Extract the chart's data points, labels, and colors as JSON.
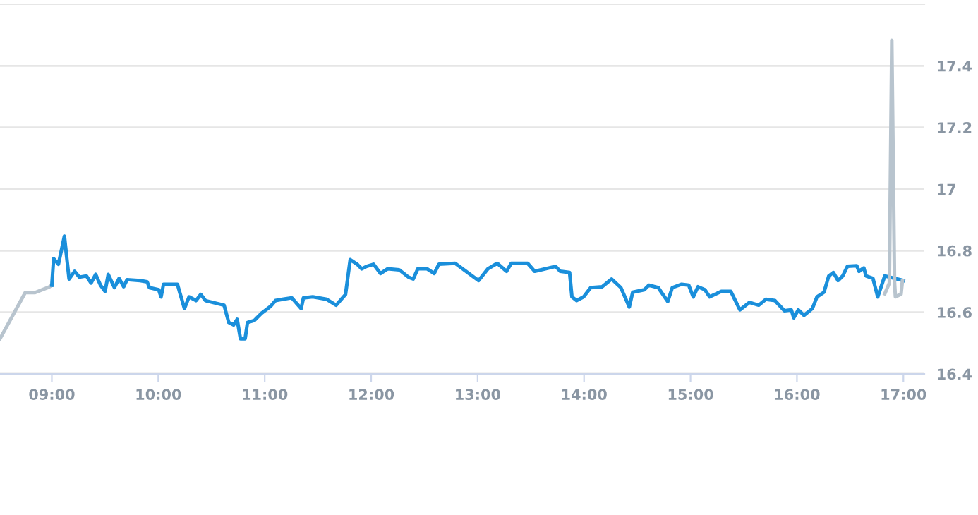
{
  "chart_data": {
    "type": "line",
    "xlim": [
      8.513,
      17.197
    ],
    "xticks": [
      {
        "value": 9,
        "label": "09:00"
      },
      {
        "value": 10,
        "label": "10:00"
      },
      {
        "value": 11,
        "label": "11:00"
      },
      {
        "value": 12,
        "label": "12:00"
      },
      {
        "value": 13,
        "label": "13:00"
      },
      {
        "value": 14,
        "label": "14:00"
      },
      {
        "value": 15,
        "label": "15:00"
      },
      {
        "value": 16,
        "label": "16:00"
      },
      {
        "value": 17,
        "label": "17:00"
      }
    ],
    "ylim": [
      16.4,
      17.6
    ],
    "yticks": [
      16.4,
      16.6,
      16.8,
      17,
      17.2,
      17.4
    ],
    "grid": "y",
    "legend": false,
    "marker": "none",
    "line_style": "solid",
    "series": [
      {
        "color": "#b8c4ce",
        "x": [
          8.513,
          8.75,
          8.842,
          8.974,
          9.0
        ],
        "values": [
          16.514,
          16.664,
          16.664,
          16.682,
          16.688
        ]
      },
      {
        "color": "#1a8fdb",
        "x": [
          9.0,
          9.017,
          9.062,
          9.118,
          9.162,
          9.214,
          9.259,
          9.325,
          9.368,
          9.412,
          9.457,
          9.5,
          9.53,
          9.588,
          9.632,
          9.675,
          9.707,
          9.829,
          9.895,
          9.917,
          10.004,
          10.026,
          10.049,
          10.18,
          10.201,
          10.246,
          10.289,
          10.355,
          10.399,
          10.443,
          10.618,
          10.662,
          10.707,
          10.741,
          10.772,
          10.816,
          10.838,
          10.904,
          10.97,
          11.057,
          11.101,
          11.167,
          11.254,
          11.342,
          11.364,
          11.451,
          11.583,
          11.671,
          11.759,
          11.803,
          11.868,
          11.912,
          11.957,
          12.022,
          12.088,
          12.154,
          12.263,
          12.351,
          12.395,
          12.438,
          12.526,
          12.592,
          12.636,
          12.789,
          13.009,
          13.096,
          13.184,
          13.272,
          13.316,
          13.47,
          13.536,
          13.733,
          13.776,
          13.864,
          13.886,
          13.93,
          13.996,
          14.062,
          14.171,
          14.259,
          14.346,
          14.425,
          14.457,
          14.566,
          14.609,
          14.697,
          14.786,
          14.829,
          14.917,
          14.983,
          15.026,
          15.07,
          15.136,
          15.18,
          15.289,
          15.378,
          15.464,
          15.553,
          15.641,
          15.707,
          15.793,
          15.882,
          15.947,
          15.97,
          16.013,
          16.066,
          16.145,
          16.188,
          16.254,
          16.299,
          16.342,
          16.386,
          16.43,
          16.474,
          16.562,
          16.583,
          16.628,
          16.649,
          16.714,
          16.759,
          16.825,
          17.0
        ],
        "values": [
          16.688,
          16.774,
          16.756,
          16.847,
          16.708,
          16.733,
          16.714,
          16.718,
          16.695,
          16.723,
          16.688,
          16.668,
          16.723,
          16.68,
          16.71,
          16.683,
          16.706,
          16.703,
          16.699,
          16.68,
          16.673,
          16.65,
          16.691,
          16.691,
          16.665,
          16.612,
          16.65,
          16.638,
          16.658,
          16.638,
          16.623,
          16.567,
          16.559,
          16.577,
          16.514,
          16.514,
          16.567,
          16.574,
          16.597,
          16.62,
          16.638,
          16.642,
          16.647,
          16.612,
          16.647,
          16.65,
          16.642,
          16.623,
          16.658,
          16.771,
          16.756,
          16.741,
          16.749,
          16.756,
          16.726,
          16.741,
          16.738,
          16.714,
          16.708,
          16.741,
          16.741,
          16.726,
          16.756,
          16.759,
          16.703,
          16.741,
          16.759,
          16.733,
          16.759,
          16.759,
          16.733,
          16.749,
          16.733,
          16.729,
          16.65,
          16.638,
          16.65,
          16.68,
          16.683,
          16.708,
          16.68,
          16.617,
          16.665,
          16.673,
          16.688,
          16.68,
          16.635,
          16.68,
          16.691,
          16.688,
          16.65,
          16.683,
          16.673,
          16.65,
          16.668,
          16.668,
          16.608,
          16.632,
          16.623,
          16.642,
          16.638,
          16.605,
          16.608,
          16.582,
          16.608,
          16.59,
          16.612,
          16.65,
          16.665,
          16.718,
          16.729,
          16.703,
          16.718,
          16.749,
          16.751,
          16.733,
          16.744,
          16.718,
          16.71,
          16.65,
          16.718,
          16.703
        ]
      },
      {
        "color": "#b8c4ce",
        "x": [
          16.825,
          16.868,
          16.891,
          16.917,
          16.925,
          16.978,
          16.991
        ],
        "values": [
          16.66,
          16.695,
          17.483,
          16.695,
          16.65,
          16.659,
          16.703
        ]
      }
    ]
  }
}
